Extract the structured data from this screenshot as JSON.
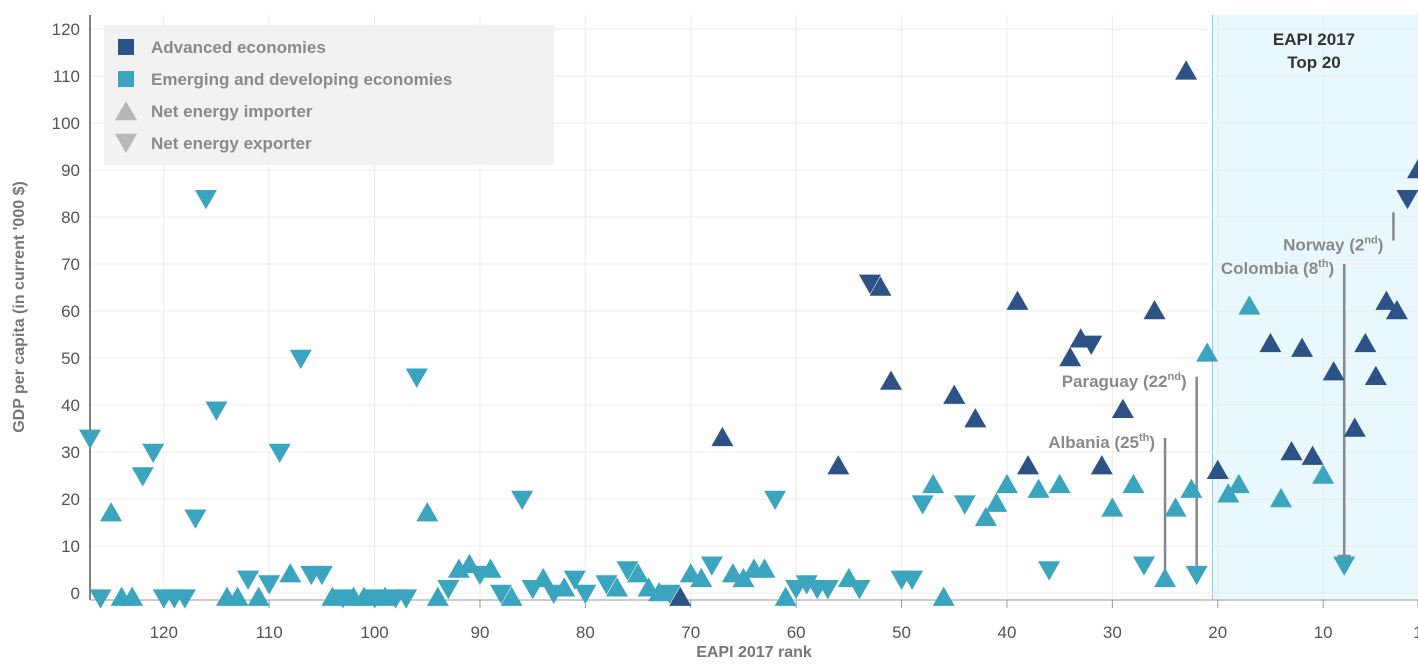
{
  "chart_data": {
    "type": "scatter",
    "xlabel": "EAPI 2017 rank",
    "ylabel": "GDP per capita (in current '000 $)",
    "xlim": [
      127,
      1
    ],
    "ylim": [
      0,
      120
    ],
    "x_reversed": true,
    "xticks": [
      120,
      110,
      100,
      90,
      80,
      70,
      60,
      50,
      40,
      30,
      20,
      10,
      1
    ],
    "yticks": [
      0,
      10,
      20,
      30,
      40,
      50,
      60,
      70,
      80,
      90,
      100,
      110,
      120
    ],
    "grid": true,
    "legend_position": "top-left",
    "legend": [
      {
        "label": "Advanced economies",
        "marker": "square",
        "color": "#2c5286"
      },
      {
        "label": "Emerging and developing economies",
        "marker": "square",
        "color": "#3ba4bf"
      },
      {
        "label": "Net energy importer",
        "marker": "triangle-up",
        "color": "#b8b8b8"
      },
      {
        "label": "Net energy exporter",
        "marker": "triangle-down",
        "color": "#b8b8b8"
      }
    ],
    "colors": {
      "advanced": "#2c5286",
      "emerging": "#3ba4bf",
      "highlight_fill": "#e8f8fc",
      "highlight_border": "#7fd0e6"
    },
    "highlight_band": {
      "label_line1": "EAPI 2017",
      "label_line2": "Top 20",
      "x_from": 20.5,
      "x_to": 1
    },
    "annotations": [
      {
        "name": "Norway",
        "rank_sup": "nd",
        "rank_num": "2",
        "x": 2,
        "line_top": 75,
        "line_bottom": 81
      },
      {
        "name": "Colombia",
        "rank_sup": "th",
        "rank_num": "8",
        "x": 8,
        "line_top": 70,
        "line_bottom": 6
      },
      {
        "name": "Paraguay",
        "rank_sup": "nd",
        "rank_num": "22",
        "x": 22,
        "line_top": 46,
        "line_bottom": 3
      },
      {
        "name": "Albania",
        "rank_sup": "th",
        "rank_num": "25",
        "x": 25,
        "line_top": 33,
        "line_bottom": 3
      }
    ],
    "series": [
      {
        "group": "advanced",
        "points": [
          {
            "x": 1,
            "y": 90,
            "dir": "up"
          },
          {
            "x": 2,
            "y": 84,
            "dir": "down"
          },
          {
            "x": 3,
            "y": 60,
            "dir": "up"
          },
          {
            "x": 4,
            "y": 62,
            "dir": "up"
          },
          {
            "x": 5,
            "y": 46,
            "dir": "up"
          },
          {
            "x": 6,
            "y": 53,
            "dir": "up"
          },
          {
            "x": 7,
            "y": 35,
            "dir": "up"
          },
          {
            "x": 9,
            "y": 47,
            "dir": "up"
          },
          {
            "x": 11,
            "y": 29,
            "dir": "up"
          },
          {
            "x": 12,
            "y": 52,
            "dir": "up"
          },
          {
            "x": 13,
            "y": 30,
            "dir": "up"
          },
          {
            "x": 15,
            "y": 53,
            "dir": "up"
          },
          {
            "x": 20,
            "y": 26,
            "dir": "up"
          },
          {
            "x": 23,
            "y": 111,
            "dir": "up"
          },
          {
            "x": 26,
            "y": 60,
            "dir": "up"
          },
          {
            "x": 29,
            "y": 39,
            "dir": "up"
          },
          {
            "x": 31,
            "y": 27,
            "dir": "up"
          },
          {
            "x": 32,
            "y": 53,
            "dir": "down"
          },
          {
            "x": 33,
            "y": 54,
            "dir": "up"
          },
          {
            "x": 34,
            "y": 50,
            "dir": "up"
          },
          {
            "x": 38,
            "y": 27,
            "dir": "up"
          },
          {
            "x": 39,
            "y": 62,
            "dir": "up"
          },
          {
            "x": 43,
            "y": 37,
            "dir": "up"
          },
          {
            "x": 45,
            "y": 42,
            "dir": "up"
          },
          {
            "x": 51,
            "y": 45,
            "dir": "up"
          },
          {
            "x": 52,
            "y": 65,
            "dir": "up"
          },
          {
            "x": 53,
            "y": 66,
            "dir": "down"
          },
          {
            "x": 56,
            "y": 27,
            "dir": "up"
          },
          {
            "x": 67,
            "y": 33,
            "dir": "up"
          },
          {
            "x": 71,
            "y": -1,
            "dir": "up"
          }
        ]
      },
      {
        "group": "emerging",
        "points": [
          {
            "x": 8,
            "y": 6,
            "dir": "down"
          },
          {
            "x": 10,
            "y": 25,
            "dir": "up"
          },
          {
            "x": 14,
            "y": 20,
            "dir": "up"
          },
          {
            "x": 17,
            "y": 61,
            "dir": "up"
          },
          {
            "x": 18,
            "y": 23,
            "dir": "up"
          },
          {
            "x": 19,
            "y": 21,
            "dir": "up"
          },
          {
            "x": 21,
            "y": 51,
            "dir": "up"
          },
          {
            "x": 22,
            "y": 4,
            "dir": "down"
          },
          {
            "x": 22.5,
            "y": 22,
            "dir": "up"
          },
          {
            "x": 24,
            "y": 18,
            "dir": "up"
          },
          {
            "x": 25,
            "y": 3,
            "dir": "up"
          },
          {
            "x": 27,
            "y": 6,
            "dir": "down"
          },
          {
            "x": 28,
            "y": 23,
            "dir": "up"
          },
          {
            "x": 30,
            "y": 18,
            "dir": "up"
          },
          {
            "x": 35,
            "y": 23,
            "dir": "up"
          },
          {
            "x": 36,
            "y": 5,
            "dir": "down"
          },
          {
            "x": 37,
            "y": 22,
            "dir": "up"
          },
          {
            "x": 40,
            "y": 23,
            "dir": "up"
          },
          {
            "x": 41,
            "y": 19,
            "dir": "up"
          },
          {
            "x": 42,
            "y": 16,
            "dir": "up"
          },
          {
            "x": 44,
            "y": 19,
            "dir": "down"
          },
          {
            "x": 46,
            "y": -1,
            "dir": "up"
          },
          {
            "x": 47,
            "y": 23,
            "dir": "up"
          },
          {
            "x": 48,
            "y": 19,
            "dir": "down"
          },
          {
            "x": 49,
            "y": 3,
            "dir": "down"
          },
          {
            "x": 50,
            "y": 3,
            "dir": "down"
          },
          {
            "x": 54,
            "y": 1,
            "dir": "down"
          },
          {
            "x": 55,
            "y": 3,
            "dir": "up"
          },
          {
            "x": 57,
            "y": 1,
            "dir": "down"
          },
          {
            "x": 58,
            "y": 1,
            "dir": "down"
          },
          {
            "x": 59,
            "y": 2,
            "dir": "down"
          },
          {
            "x": 60,
            "y": 1,
            "dir": "down"
          },
          {
            "x": 61,
            "y": -1,
            "dir": "up"
          },
          {
            "x": 62,
            "y": 20,
            "dir": "down"
          },
          {
            "x": 63,
            "y": 5,
            "dir": "up"
          },
          {
            "x": 64,
            "y": 5,
            "dir": "up"
          },
          {
            "x": 65,
            "y": 3,
            "dir": "up"
          },
          {
            "x": 66,
            "y": 4,
            "dir": "up"
          },
          {
            "x": 68,
            "y": 6,
            "dir": "down"
          },
          {
            "x": 69,
            "y": 3,
            "dir": "up"
          },
          {
            "x": 70,
            "y": 4,
            "dir": "up"
          },
          {
            "x": 72,
            "y": 0,
            "dir": "down"
          },
          {
            "x": 73,
            "y": 0,
            "dir": "up"
          },
          {
            "x": 74,
            "y": 1,
            "dir": "up"
          },
          {
            "x": 75,
            "y": 4,
            "dir": "up"
          },
          {
            "x": 76,
            "y": 5,
            "dir": "down"
          },
          {
            "x": 77,
            "y": 1,
            "dir": "up"
          },
          {
            "x": 78,
            "y": 2,
            "dir": "down"
          },
          {
            "x": 80,
            "y": 0,
            "dir": "down"
          },
          {
            "x": 81,
            "y": 3,
            "dir": "down"
          },
          {
            "x": 82,
            "y": 1,
            "dir": "up"
          },
          {
            "x": 83,
            "y": 0,
            "dir": "down"
          },
          {
            "x": 84,
            "y": 3,
            "dir": "up"
          },
          {
            "x": 85,
            "y": 1,
            "dir": "down"
          },
          {
            "x": 86,
            "y": 20,
            "dir": "down"
          },
          {
            "x": 87,
            "y": -1,
            "dir": "up"
          },
          {
            "x": 88,
            "y": 0,
            "dir": "down"
          },
          {
            "x": 89,
            "y": 5,
            "dir": "up"
          },
          {
            "x": 90,
            "y": 4,
            "dir": "down"
          },
          {
            "x": 91,
            "y": 6,
            "dir": "up"
          },
          {
            "x": 92,
            "y": 5,
            "dir": "up"
          },
          {
            "x": 93,
            "y": 1,
            "dir": "down"
          },
          {
            "x": 94,
            "y": -1,
            "dir": "up"
          },
          {
            "x": 95,
            "y": 17,
            "dir": "up"
          },
          {
            "x": 96,
            "y": 46,
            "dir": "down"
          },
          {
            "x": 97,
            "y": -1,
            "dir": "down"
          },
          {
            "x": 98,
            "y": -1,
            "dir": "down"
          },
          {
            "x": 99,
            "y": -1,
            "dir": "up"
          },
          {
            "x": 100,
            "y": -1,
            "dir": "down"
          },
          {
            "x": 101,
            "y": -1,
            "dir": "up"
          },
          {
            "x": 102,
            "y": -1,
            "dir": "up"
          },
          {
            "x": 103,
            "y": -1,
            "dir": "down"
          },
          {
            "x": 104,
            "y": -1,
            "dir": "up"
          },
          {
            "x": 105,
            "y": 4,
            "dir": "down"
          },
          {
            "x": 106,
            "y": 4,
            "dir": "down"
          },
          {
            "x": 107,
            "y": 50,
            "dir": "down"
          },
          {
            "x": 108,
            "y": 4,
            "dir": "up"
          },
          {
            "x": 109,
            "y": 30,
            "dir": "down"
          },
          {
            "x": 110,
            "y": 2,
            "dir": "down"
          },
          {
            "x": 111,
            "y": -1,
            "dir": "up"
          },
          {
            "x": 112,
            "y": 3,
            "dir": "down"
          },
          {
            "x": 113,
            "y": -1,
            "dir": "up"
          },
          {
            "x": 114,
            "y": -1,
            "dir": "up"
          },
          {
            "x": 115,
            "y": 39,
            "dir": "down"
          },
          {
            "x": 116,
            "y": 84,
            "dir": "down"
          },
          {
            "x": 117,
            "y": 16,
            "dir": "down"
          },
          {
            "x": 118,
            "y": -1,
            "dir": "down"
          },
          {
            "x": 119,
            "y": -1,
            "dir": "down"
          },
          {
            "x": 120,
            "y": -1,
            "dir": "down"
          },
          {
            "x": 121,
            "y": 30,
            "dir": "down"
          },
          {
            "x": 122,
            "y": 25,
            "dir": "down"
          },
          {
            "x": 123,
            "y": -1,
            "dir": "up"
          },
          {
            "x": 124,
            "y": -1,
            "dir": "up"
          },
          {
            "x": 125,
            "y": 17,
            "dir": "up"
          },
          {
            "x": 126,
            "y": -1,
            "dir": "down"
          },
          {
            "x": 127,
            "y": 33,
            "dir": "down"
          }
        ]
      }
    ]
  }
}
